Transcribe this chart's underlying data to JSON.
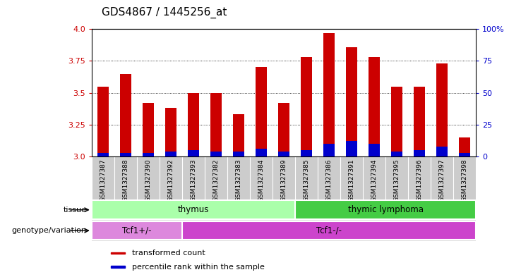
{
  "title": "GDS4867 / 1445256_at",
  "samples": [
    "GSM1327387",
    "GSM1327388",
    "GSM1327390",
    "GSM1327392",
    "GSM1327393",
    "GSM1327382",
    "GSM1327383",
    "GSM1327384",
    "GSM1327389",
    "GSM1327385",
    "GSM1327386",
    "GSM1327391",
    "GSM1327394",
    "GSM1327395",
    "GSM1327396",
    "GSM1327397",
    "GSM1327398"
  ],
  "transformed_count": [
    3.55,
    3.65,
    3.42,
    3.38,
    3.5,
    3.5,
    3.33,
    3.7,
    3.42,
    3.78,
    3.97,
    3.86,
    3.78,
    3.55,
    3.55,
    3.73,
    3.15
  ],
  "percentile_rank": [
    3,
    3,
    3,
    4,
    5,
    4,
    4,
    6,
    4,
    5,
    10,
    12,
    10,
    4,
    5,
    8,
    3
  ],
  "bar_color": "#cc0000",
  "pct_color": "#0000cc",
  "ylim_left": [
    3.0,
    4.0
  ],
  "ylim_right": [
    0,
    100
  ],
  "yticks_left": [
    3.0,
    3.25,
    3.5,
    3.75,
    4.0
  ],
  "yticks_right": [
    0,
    25,
    50,
    75,
    100
  ],
  "grid_values": [
    3.25,
    3.5,
    3.75
  ],
  "tissue_groups": [
    {
      "label": "thymus",
      "start": 0,
      "end": 9,
      "color": "#aaffaa"
    },
    {
      "label": "thymic lymphoma",
      "start": 9,
      "end": 17,
      "color": "#44cc44"
    }
  ],
  "genotype_groups": [
    {
      "label": "Tcf1+/-",
      "start": 0,
      "end": 4,
      "color": "#dd88dd"
    },
    {
      "label": "Tcf1-/-",
      "start": 4,
      "end": 17,
      "color": "#cc44cc"
    }
  ],
  "tissue_label": "tissue",
  "genotype_label": "genotype/variation",
  "legend_items": [
    {
      "color": "#cc0000",
      "label": "transformed count"
    },
    {
      "color": "#0000cc",
      "label": "percentile rank within the sample"
    }
  ],
  "bar_width": 0.5,
  "background_color": "#ffffff",
  "plot_bg": "#ffffff",
  "xtick_bg": "#cccccc",
  "tick_label_color_left": "#cc0000",
  "tick_label_color_right": "#0000cc",
  "title_fontsize": 11,
  "axis_fontsize": 8
}
